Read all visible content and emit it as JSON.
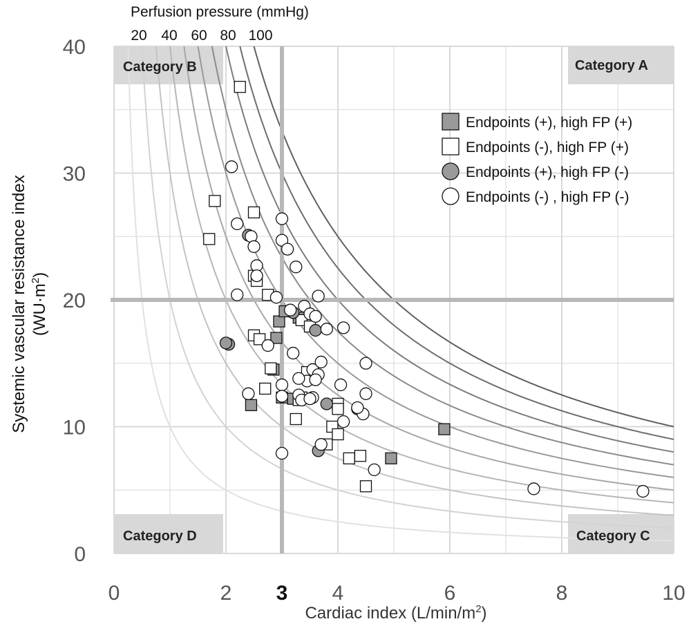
{
  "chart_data": {
    "type": "scatter",
    "title": "",
    "xlabel": "Cardiac index (L/min/m",
    "xlabel_sup": "2",
    "xlabel_end": ")",
    "ylabel_line1": "Systemic vascular resistance index",
    "ylabel_line2_pre": "(WU·m",
    "ylabel_line2_sup": "2",
    "ylabel_line2_end": ")",
    "xlim": [
      0,
      10
    ],
    "ylim": [
      0,
      40
    ],
    "x_ticks": [
      0,
      2,
      4,
      6,
      8,
      10
    ],
    "y_ticks": [
      0,
      10,
      20,
      30,
      40
    ],
    "x_threshold": 3,
    "x_threshold_label": "3",
    "y_threshold": 20,
    "top_axis_label": "Perfusion pressure (mmHg)",
    "top_ticks": [
      "20",
      "40",
      "60",
      "80",
      "100"
    ],
    "iso_pressure_curves": [
      10,
      20,
      30,
      40,
      50,
      60,
      70,
      80,
      90,
      100
    ],
    "categories": {
      "A": "Category A",
      "B": "Category B",
      "C": "Category C",
      "D": "Category D"
    },
    "series": [
      {
        "name": "Endpoints (+), high FP (+)",
        "marker": "square",
        "fill": "#9a9a9a",
        "points": [
          [
            2.45,
            11.7
          ],
          [
            3.0,
            12.3
          ],
          [
            3.2,
            12.2
          ],
          [
            2.85,
            14.5
          ],
          [
            2.9,
            17.0
          ],
          [
            2.95,
            18.3
          ],
          [
            3.05,
            19.1
          ],
          [
            3.3,
            18.6
          ],
          [
            4.95,
            7.5
          ],
          [
            5.9,
            9.8
          ]
        ]
      },
      {
        "name": "Endpoints (-), high FP (+)",
        "marker": "square",
        "fill": "#ffffff",
        "points": [
          [
            2.25,
            36.8
          ],
          [
            1.8,
            27.8
          ],
          [
            1.7,
            24.8
          ],
          [
            2.5,
            26.9
          ],
          [
            2.5,
            21.9
          ],
          [
            2.55,
            21.5
          ],
          [
            2.75,
            20.4
          ],
          [
            2.5,
            17.2
          ],
          [
            2.6,
            16.9
          ],
          [
            2.8,
            14.6
          ],
          [
            2.7,
            13.0
          ],
          [
            3.25,
            10.6
          ],
          [
            3.35,
            12.3
          ],
          [
            3.3,
            12.1
          ],
          [
            3.45,
            14.3
          ],
          [
            3.35,
            18.4
          ],
          [
            3.5,
            17.9
          ],
          [
            3.9,
            10.0
          ],
          [
            4.0,
            9.4
          ],
          [
            4.0,
            11.8
          ],
          [
            3.8,
            8.6
          ],
          [
            4.0,
            11.4
          ],
          [
            4.2,
            7.5
          ],
          [
            4.4,
            7.7
          ],
          [
            4.5,
            5.3
          ]
        ]
      },
      {
        "name": "Endpoints (+), high FP (-)",
        "marker": "circle",
        "fill": "#9a9a9a",
        "points": [
          [
            2.05,
            16.5
          ],
          [
            2.0,
            16.6
          ],
          [
            2.4,
            25.1
          ],
          [
            3.6,
            17.6
          ],
          [
            3.8,
            11.8
          ],
          [
            3.65,
            8.1
          ],
          [
            4.35,
            11.4
          ],
          [
            3.2,
            19.0
          ]
        ]
      },
      {
        "name": "Endpoints (-) , high FP (-)",
        "marker": "circle",
        "fill": "#ffffff",
        "points": [
          [
            2.1,
            30.5
          ],
          [
            2.2,
            26.0
          ],
          [
            2.2,
            20.4
          ],
          [
            2.45,
            25.0
          ],
          [
            2.5,
            24.2
          ],
          [
            2.55,
            22.7
          ],
          [
            2.55,
            21.9
          ],
          [
            3.0,
            26.4
          ],
          [
            3.0,
            24.7
          ],
          [
            3.1,
            24.0
          ],
          [
            3.25,
            22.6
          ],
          [
            3.65,
            20.3
          ],
          [
            3.4,
            19.5
          ],
          [
            3.15,
            19.2
          ],
          [
            3.5,
            18.9
          ],
          [
            3.6,
            18.7
          ],
          [
            3.8,
            17.7
          ],
          [
            4.1,
            17.8
          ],
          [
            2.9,
            20.2
          ],
          [
            2.75,
            16.4
          ],
          [
            3.2,
            15.8
          ],
          [
            3.55,
            14.5
          ],
          [
            3.7,
            15.1
          ],
          [
            3.65,
            14.1
          ],
          [
            3.45,
            13.6
          ],
          [
            3.3,
            13.8
          ],
          [
            3.6,
            13.7
          ],
          [
            3.0,
            13.3
          ],
          [
            3.0,
            12.4
          ],
          [
            3.3,
            12.5
          ],
          [
            3.55,
            12.3
          ],
          [
            3.35,
            12.1
          ],
          [
            3.5,
            12.2
          ],
          [
            2.4,
            12.6
          ],
          [
            4.05,
            13.3
          ],
          [
            4.5,
            12.6
          ],
          [
            4.5,
            15.0
          ],
          [
            4.45,
            11.0
          ],
          [
            4.35,
            11.5
          ],
          [
            4.1,
            10.4
          ],
          [
            4.65,
            6.6
          ],
          [
            3.7,
            8.6
          ],
          [
            3.0,
            7.9
          ],
          [
            7.5,
            5.1
          ],
          [
            9.45,
            4.9
          ]
        ]
      }
    ]
  }
}
